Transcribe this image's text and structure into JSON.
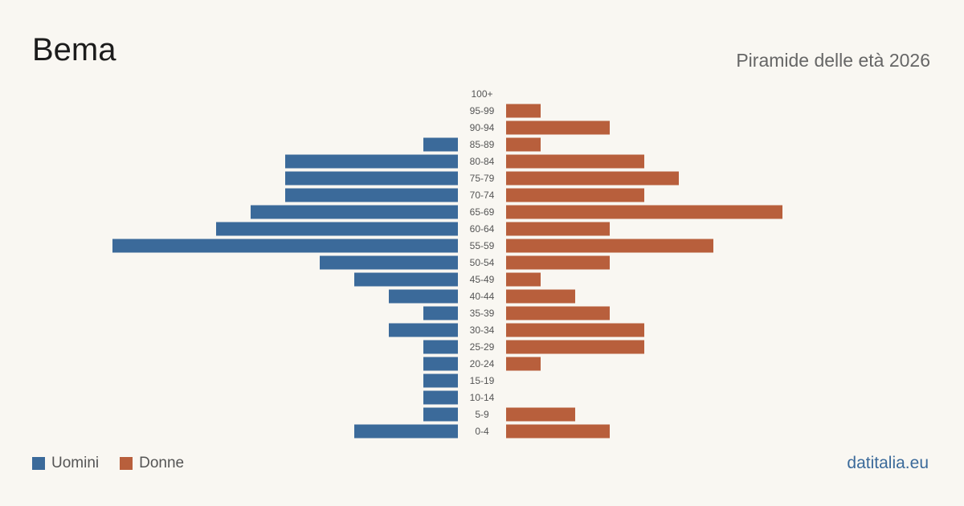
{
  "header": {
    "title": "Bema",
    "subtitle": "Piramide delle età 2026"
  },
  "legend": {
    "men_label": "Uomini",
    "women_label": "Donne"
  },
  "brand": "datitalia.eu",
  "colors": {
    "men": "#3b6a9a",
    "women": "#b85f3c",
    "background": "#f9f7f2"
  },
  "chart_data": {
    "type": "bar",
    "orientation": "horizontal-pyramid",
    "categories": [
      "100+",
      "95-99",
      "90-94",
      "85-89",
      "80-84",
      "75-79",
      "70-74",
      "65-69",
      "60-64",
      "55-59",
      "50-54",
      "45-49",
      "40-44",
      "35-39",
      "30-34",
      "25-29",
      "20-24",
      "15-19",
      "10-14",
      "5-9",
      "0-4"
    ],
    "series": [
      {
        "name": "Uomini",
        "values": [
          0,
          0,
          0,
          1,
          5,
          5,
          5,
          6,
          7,
          10,
          4,
          3,
          2,
          1,
          2,
          1,
          1,
          1,
          1,
          1,
          3
        ]
      },
      {
        "name": "Donne",
        "values": [
          0,
          1,
          3,
          1,
          4,
          5,
          4,
          8,
          3,
          6,
          3,
          1,
          2,
          3,
          4,
          4,
          1,
          0,
          0,
          2,
          3
        ]
      }
    ],
    "xlim": [
      0,
      10
    ],
    "grid": false,
    "legend_position": "bottom-left"
  }
}
